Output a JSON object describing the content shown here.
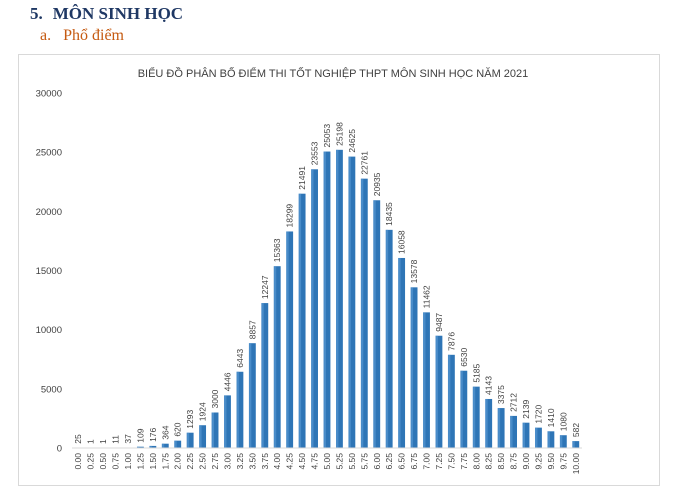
{
  "section": {
    "number": "5.",
    "title": "MÔN SINH HỌC"
  },
  "subsection": {
    "letter": "a.",
    "title": "Phổ điểm"
  },
  "colors": {
    "bar": "#2e75b6",
    "bar_highlight": "#5b9bd5",
    "axis": "#d9d9d9",
    "heading": "#1f3864",
    "subheading": "#c55a11"
  },
  "chart_data": {
    "type": "bar",
    "title": "BIỂU ĐỒ PHÂN BỐ ĐIỂM THI TỐT NGHIỆP THPT MÔN SINH HỌC NĂM 2021",
    "xlabel": "",
    "ylabel": "",
    "ylim": [
      0,
      30000
    ],
    "yticks": [
      "0",
      "5000",
      "10000",
      "15000",
      "20000",
      "25000",
      "30000"
    ],
    "grid": false,
    "legend": "none",
    "categories": [
      "0.00",
      "0.25",
      "0.50",
      "0.75",
      "1.00",
      "1.25",
      "1.50",
      "1.75",
      "2.00",
      "2.25",
      "2.50",
      "2.75",
      "3.00",
      "3.25",
      "3.50",
      "3.75",
      "4.00",
      "4.25",
      "4.50",
      "4.75",
      "5.00",
      "5.25",
      "5.50",
      "5.75",
      "6.00",
      "6.25",
      "6.50",
      "6.75",
      "7.00",
      "7.25",
      "7.50",
      "7.75",
      "8.00",
      "8.25",
      "8.50",
      "8.75",
      "9.00",
      "9.25",
      "9.50",
      "9.75",
      "10.00"
    ],
    "values": [
      25,
      1,
      1,
      11,
      37,
      109,
      176,
      364,
      620,
      1293,
      1924,
      3000,
      4446,
      6443,
      8857,
      12247,
      15363,
      18299,
      21491,
      23553,
      25053,
      25198,
      24625,
      22761,
      20935,
      18435,
      16058,
      13578,
      11462,
      9487,
      7876,
      6530,
      5185,
      4143,
      3375,
      2712,
      2139,
      1720,
      1410,
      1080,
      582
    ]
  }
}
